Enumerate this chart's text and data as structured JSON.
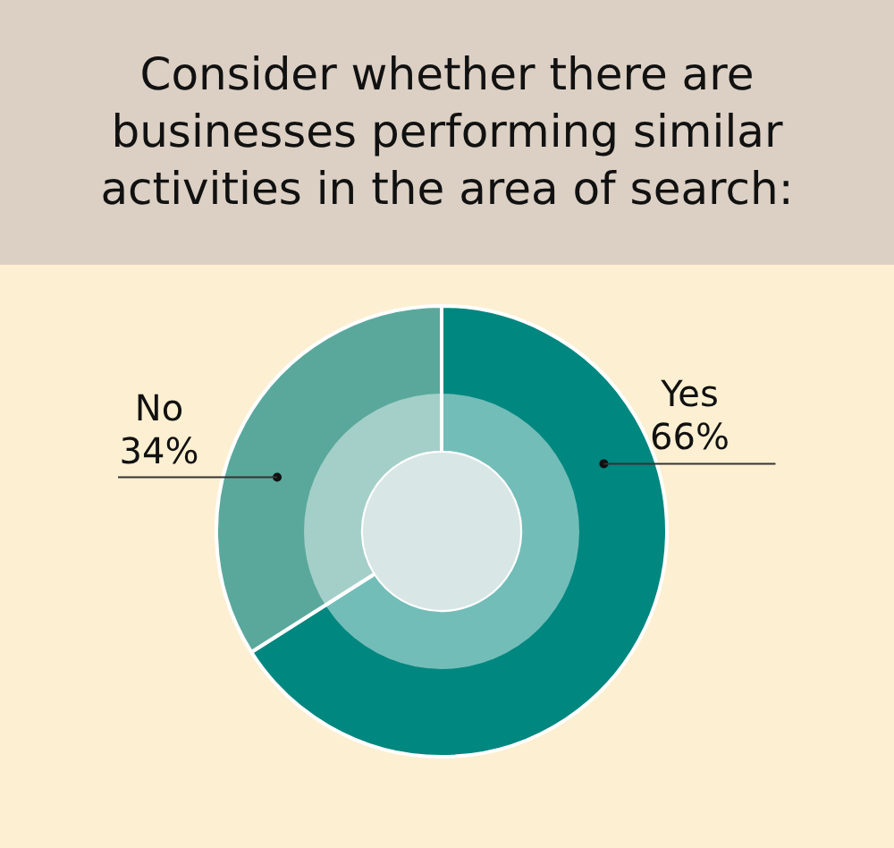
{
  "chart_data": {
    "type": "donut",
    "title": "Consider whether there are businesses performing similar activities in the area of search:",
    "categories": [
      "Yes",
      "No"
    ],
    "values": [
      66,
      34
    ],
    "colors": [
      "#00877f",
      "#5aa89c"
    ],
    "value_labels": [
      "66%",
      "34%"
    ],
    "legend": false
  }
}
